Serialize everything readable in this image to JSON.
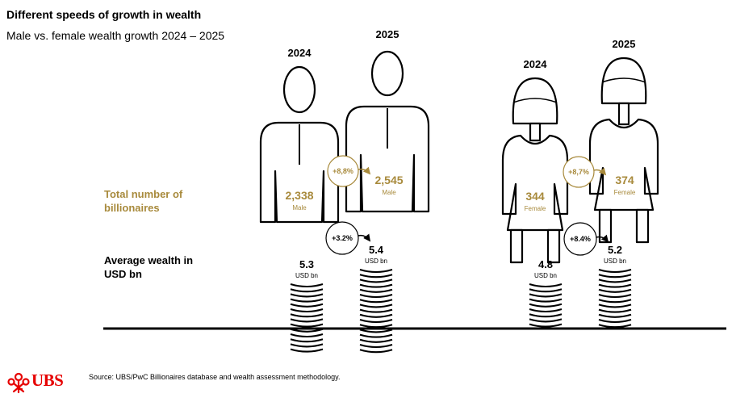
{
  "title": "Different speeds of growth in wealth",
  "subtitle": "Male vs. female wealth growth 2024 – 2025",
  "row_labels": {
    "billionaires": "Total number of billionaires",
    "billionaires_line1": "Total number of",
    "billionaires_line2": "billionaires",
    "wealth": "Average wealth in USD bn",
    "wealth_line1": "Average wealth in",
    "wealth_line2": "USD bn"
  },
  "source": "Source: UBS/PwC Billionaires database and wealth assessment methodology.",
  "logo": "UBS",
  "colors": {
    "gold": "#a88a3c",
    "ink": "#000000",
    "brand_red": "#e60000"
  },
  "chart_data": {
    "type": "pictograph",
    "groups": [
      {
        "gender": "Male",
        "years": [
          "2024",
          "2025"
        ],
        "billionaires": [
          "2,338",
          "2,545"
        ],
        "billionaires_change": "+8,8%",
        "avg_wealth": [
          "5.3",
          "5.4"
        ],
        "avg_wealth_change": "+3.2%",
        "unit": "USD bn"
      },
      {
        "gender": "Female",
        "years": [
          "2024",
          "2025"
        ],
        "billionaires": [
          "344",
          "374"
        ],
        "billionaires_change": "+8,7%",
        "avg_wealth": [
          "4.8",
          "5.2"
        ],
        "avg_wealth_change": "+8.4%",
        "unit": "USD bn"
      }
    ]
  }
}
